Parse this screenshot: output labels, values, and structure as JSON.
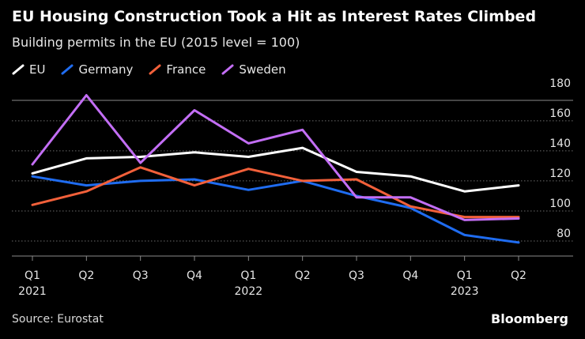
{
  "title": "EU Housing Construction Took a Hit as Interest Rates Climbed",
  "subtitle": "Building permits in the EU (2015 level = 100)",
  "source": "Source: Eurostat",
  "brand": "Bloomberg",
  "chart_data": {
    "type": "line",
    "categories": [
      "Q1",
      "Q2",
      "Q3",
      "Q4",
      "Q1",
      "Q2",
      "Q3",
      "Q4",
      "Q1",
      "Q2"
    ],
    "year_labels": [
      "2021",
      "",
      "",
      "",
      "2022",
      "",
      "",
      "",
      "2023",
      ""
    ],
    "yticks": [
      80,
      100,
      120,
      140,
      160,
      180
    ],
    "ylim": [
      70,
      182
    ],
    "grid": true,
    "legend_position": "top-left",
    "series": [
      {
        "name": "EU",
        "color": "#ffffff",
        "values": [
          125,
          135,
          136,
          139,
          136,
          142,
          126,
          123,
          113,
          117
        ]
      },
      {
        "name": "Germany",
        "color": "#1f6cf0",
        "values": [
          123,
          117,
          120,
          121,
          114,
          120,
          110,
          102,
          84,
          79
        ]
      },
      {
        "name": "France",
        "color": "#f2603a",
        "values": [
          104,
          113,
          129,
          117,
          128,
          120,
          121,
          103,
          96,
          96
        ]
      },
      {
        "name": "Sweden",
        "color": "#c36ef5",
        "values": [
          131,
          177,
          132,
          167,
          145,
          154,
          109,
          109,
          94,
          95
        ]
      }
    ]
  }
}
